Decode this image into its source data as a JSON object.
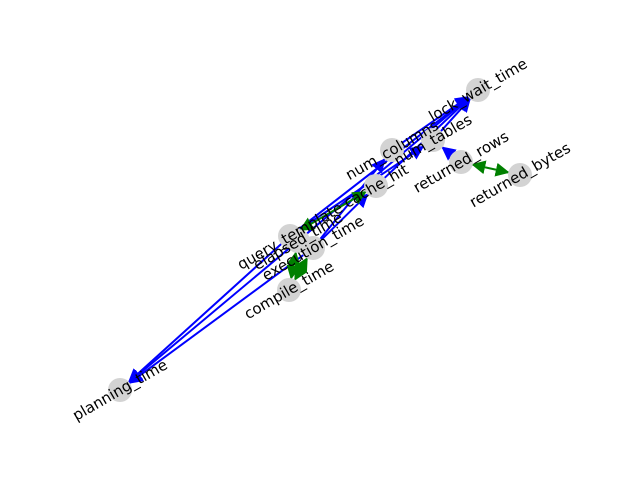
{
  "graph": {
    "colors": {
      "node": "#d3d3d3",
      "directed_edge": "#0000ff",
      "bidirectional_edge": "#008000",
      "label": "#000000"
    },
    "nodes": [
      {
        "id": "lock_wait_time",
        "label": "lock_wait_time"
      },
      {
        "id": "num_tables",
        "label": "num_tables"
      },
      {
        "id": "num_columns",
        "label": "num_columns"
      },
      {
        "id": "returned_rows",
        "label": "returned_rows"
      },
      {
        "id": "returned_bytes",
        "label": "returned_bytes"
      },
      {
        "id": "cache_hit",
        "label": "cache_hit"
      },
      {
        "id": "query_template",
        "label": "query_template"
      },
      {
        "id": "elapsed_time",
        "label": "elapsed_time"
      },
      {
        "id": "execution_time",
        "label": "execution_time"
      },
      {
        "id": "compile_time",
        "label": "compile_time"
      },
      {
        "id": "planning_time",
        "label": "planning_time"
      }
    ],
    "edges": [
      {
        "from": "query_template",
        "to": "planning_time",
        "kind": "directed"
      },
      {
        "from": "elapsed_time",
        "to": "planning_time",
        "kind": "directed"
      },
      {
        "from": "execution_time",
        "to": "planning_time",
        "kind": "directed"
      },
      {
        "from": "query_template",
        "to": "lock_wait_time",
        "kind": "directed"
      },
      {
        "from": "elapsed_time",
        "to": "lock_wait_time",
        "kind": "directed"
      },
      {
        "from": "cache_hit",
        "to": "lock_wait_time",
        "kind": "directed"
      },
      {
        "from": "num_columns",
        "to": "lock_wait_time",
        "kind": "directed"
      },
      {
        "from": "num_tables",
        "to": "lock_wait_time",
        "kind": "directed"
      },
      {
        "from": "returned_rows",
        "to": "num_tables",
        "kind": "directed"
      },
      {
        "from": "query_template",
        "to": "num_tables",
        "kind": "directed"
      },
      {
        "from": "execution_time",
        "to": "num_columns",
        "kind": "directed"
      },
      {
        "from": "execution_time",
        "to": "cache_hit",
        "kind": "directed"
      },
      {
        "from": "query_template",
        "to": "cache_hit",
        "kind": "bidirectional"
      },
      {
        "from": "returned_rows",
        "to": "returned_bytes",
        "kind": "bidirectional"
      },
      {
        "from": "elapsed_time",
        "to": "compile_time",
        "kind": "bidirectional"
      },
      {
        "from": "execution_time",
        "to": "compile_time",
        "kind": "bidirectional"
      }
    ]
  }
}
